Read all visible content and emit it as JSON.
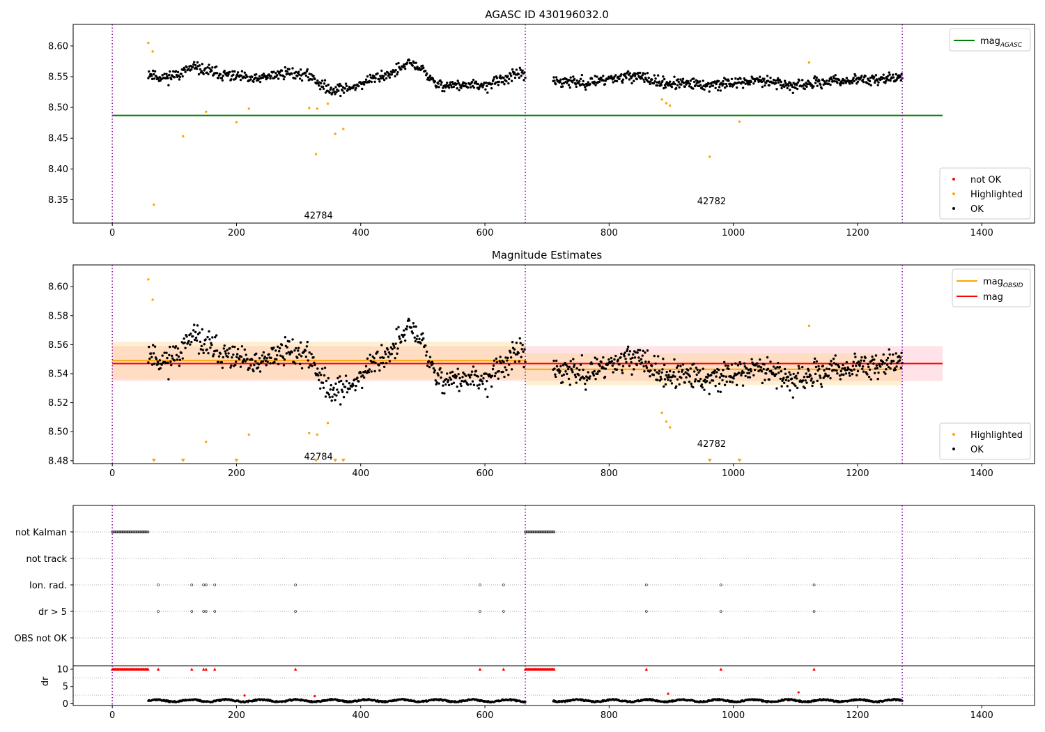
{
  "chart_data": [
    {
      "type": "scatter",
      "title": "AGASC ID 430196032.0",
      "xlim": [
        -63,
        1485
      ],
      "ylim": [
        8.312,
        8.635
      ],
      "x_ticks": [
        0,
        200,
        400,
        600,
        800,
        1000,
        1200,
        1400
      ],
      "y_ticks": [
        8.35,
        8.4,
        8.45,
        8.5,
        8.55,
        8.6
      ],
      "y_tick_decimals": 2,
      "grid": false,
      "legend_placement": [
        "upper right",
        "lower right"
      ],
      "legend_lines": [
        {
          "label": "mag",
          "sub": "AGASC",
          "color": "#008000"
        }
      ],
      "legend_points": [
        {
          "label": "not OK",
          "color": "#ff0000"
        },
        {
          "label": "Highlighted",
          "color": "#ffa500"
        },
        {
          "label": "OK",
          "color": "#000000"
        }
      ],
      "hlines": [
        {
          "name": "mag_AGASC",
          "y": 8.487,
          "x0": 0,
          "x1": 1337,
          "color": "#008000"
        }
      ],
      "vlines": [
        0,
        665,
        1272
      ],
      "annotations": [
        {
          "text": "42784",
          "x": 332,
          "y": 8.325
        },
        {
          "text": "42782",
          "x": 965,
          "y": 8.348
        }
      ],
      "series": [
        {
          "name": "OK",
          "color": "#000000",
          "generated": true,
          "segments": [
            {
              "x0": 58,
              "x1": 665,
              "n": 560,
              "seed": 11
            },
            {
              "x0": 710,
              "x1": 1272,
              "n": 560,
              "seed": 23
            }
          ],
          "trend_x": [
            58,
            80,
            100,
            130,
            180,
            230,
            280,
            320,
            345,
            380,
            420,
            450,
            480,
            500,
            520,
            560,
            600,
            640,
            665,
            720,
            760,
            800,
            840,
            880,
            920,
            960,
            1000,
            1050,
            1100,
            1150,
            1200,
            1272
          ],
          "trend_y": [
            8.556,
            8.548,
            8.552,
            8.565,
            8.553,
            8.545,
            8.557,
            8.551,
            8.53,
            8.53,
            8.547,
            8.556,
            8.572,
            8.562,
            8.537,
            8.536,
            8.535,
            8.55,
            8.555,
            8.543,
            8.54,
            8.547,
            8.552,
            8.54,
            8.538,
            8.536,
            8.54,
            8.545,
            8.534,
            8.542,
            8.545,
            8.548
          ],
          "noise": 0.0065
        },
        {
          "name": "Highlighted",
          "color": "#ffa500",
          "points": [
            [
              58,
              8.605
            ],
            [
              65,
              8.591
            ],
            [
              67,
              8.342
            ],
            [
              114,
              8.453
            ],
            [
              151,
              8.493
            ],
            [
              200,
              8.476
            ],
            [
              220,
              8.498
            ],
            [
              317,
              8.499
            ],
            [
              328,
              8.424
            ],
            [
              330,
              8.498
            ],
            [
              347,
              8.506
            ],
            [
              359,
              8.457
            ],
            [
              372,
              8.465
            ],
            [
              885,
              8.513
            ],
            [
              892,
              8.507
            ],
            [
              898,
              8.503
            ],
            [
              962,
              8.42
            ],
            [
              1010,
              8.477
            ],
            [
              1122,
              8.573
            ]
          ]
        }
      ]
    },
    {
      "type": "scatter",
      "title": "Magnitude Estimates",
      "xlim": [
        -63,
        1485
      ],
      "ylim": [
        8.478,
        8.615
      ],
      "x_ticks": [
        0,
        200,
        400,
        600,
        800,
        1000,
        1200,
        1400
      ],
      "y_ticks": [
        8.48,
        8.5,
        8.52,
        8.54,
        8.56,
        8.58,
        8.6
      ],
      "y_tick_decimals": 2,
      "grid": false,
      "legend_placement": [
        "upper right",
        "lower right"
      ],
      "legend_lines": [
        {
          "label": "mag",
          "sub": "OBSID",
          "color": "#ffa500"
        },
        {
          "label": "mag",
          "sub": "",
          "color": "#ff0000"
        }
      ],
      "legend_points": [
        {
          "label": "Highlighted",
          "color": "#ffa500"
        },
        {
          "label": "OK",
          "color": "#000000"
        }
      ],
      "bands": [
        {
          "x0": 0,
          "x1": 1337,
          "y0": 8.535,
          "y1": 8.559,
          "color": "#ffc0cb",
          "opacity": 0.45
        },
        {
          "x0": 0,
          "x1": 665,
          "y0": 8.536,
          "y1": 8.562,
          "color": "#ffd27f",
          "opacity": 0.35
        },
        {
          "x0": 665,
          "x1": 1272,
          "y0": 8.532,
          "y1": 8.554,
          "color": "#ffd27f",
          "opacity": 0.35
        }
      ],
      "hlines": [
        {
          "name": "mag_OBSID",
          "y": 8.549,
          "x0": 0,
          "x1": 665,
          "color": "#ffa500"
        },
        {
          "name": "mag_OBSID",
          "y": 8.543,
          "x0": 665,
          "x1": 1272,
          "color": "#ffa500"
        },
        {
          "name": "mag",
          "y": 8.547,
          "x0": 0,
          "x1": 1337,
          "color": "#ff0000"
        }
      ],
      "vlines": [
        0,
        665,
        1272
      ],
      "annotations": [
        {
          "text": "42784",
          "x": 332,
          "y": 8.483
        },
        {
          "text": "42782",
          "x": 965,
          "y": 8.492
        }
      ],
      "series": [
        {
          "name": "OK",
          "color": "#000000",
          "same_as_panel": 0
        },
        {
          "name": "Highlighted",
          "color": "#ffa500",
          "clip": true,
          "same_as_panel": 0
        }
      ]
    },
    {
      "type": "scatter",
      "title": "",
      "xlim": [
        -63,
        1485
      ],
      "grid": "horizontal dotted",
      "vlines": [
        0,
        665,
        1272
      ],
      "flag_rows": [
        "not Kalman",
        "not track",
        "Ion. rad.",
        "dr > 5",
        "OBS not OK"
      ],
      "flags": {
        "not Kalman": {
          "ranges": [
            [
              0,
              58
            ],
            [
              665,
              712
            ]
          ]
        },
        "not track": {
          "points": []
        },
        "Ion. rad.": {
          "points": [
            74,
            128,
            147,
            151,
            165,
            295,
            592,
            630,
            860,
            980,
            1130
          ]
        },
        "dr > 5": {
          "points": [
            74,
            128,
            147,
            151,
            165,
            295,
            592,
            630,
            860,
            980,
            1130
          ]
        },
        "OBS not OK": {
          "points": []
        }
      }
    },
    {
      "type": "scatter",
      "ylabel": "dr",
      "xlim": [
        -63,
        1485
      ],
      "ylim": [
        -0.5,
        11
      ],
      "x_ticks": [
        0,
        200,
        400,
        600,
        800,
        1000,
        1200,
        1400
      ],
      "y_ticks": [
        0,
        5,
        10
      ],
      "y_tick_decimals": 0,
      "vlines": [
        0,
        665,
        1272
      ],
      "clipped_markers": {
        "y": 10,
        "color": "#ff0000",
        "ranges": [
          [
            0,
            58
          ],
          [
            665,
            712
          ]
        ],
        "points": [
          74,
          128,
          147,
          151,
          165,
          295,
          592,
          630,
          860,
          980,
          1130
        ]
      },
      "outliers": [
        [
          895,
          2.9
        ],
        [
          1105,
          3.3
        ],
        [
          326,
          2.2
        ],
        [
          213,
          2.4
        ]
      ],
      "series": [
        {
          "name": "dr",
          "color": "#000000",
          "generated": true,
          "segments": [
            {
              "x0": 58,
              "x1": 665,
              "n": 560,
              "seed": 37
            },
            {
              "x0": 710,
              "x1": 1272,
              "n": 560,
              "seed": 41
            }
          ],
          "base": 0.9,
          "amplitude": 0.6
        }
      ]
    }
  ]
}
